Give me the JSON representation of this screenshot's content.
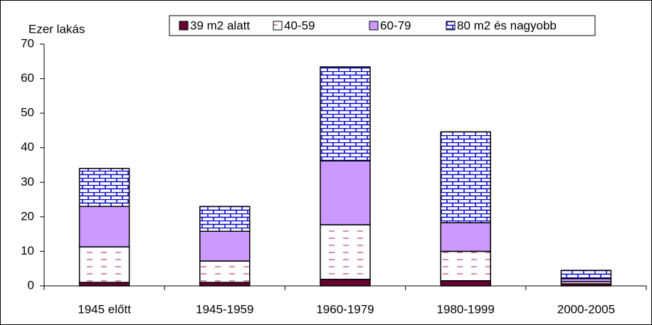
{
  "chart_data": {
    "type": "stacked_bar",
    "y_label": "Ezer lakás",
    "categories": [
      "1945 előtt",
      "1945-1959",
      "1960-1979",
      "1980-1999",
      "2000-2005"
    ],
    "series": [
      {
        "name": "39 m2 alatt",
        "color": "#660033",
        "pattern": "solid",
        "values": [
          1,
          1,
          1.9,
          1.5,
          0.6
        ]
      },
      {
        "name": "40-59",
        "color": "#cc6699",
        "pattern": "dashes",
        "values": [
          10.3,
          6.2,
          15.8,
          8.5,
          0.6
        ]
      },
      {
        "name": "60-79",
        "color": "#cc99ff",
        "pattern": "solid",
        "values": [
          11.7,
          8.6,
          18.5,
          8.3,
          0.9
        ]
      },
      {
        "name": "80 m2 és nagyobb",
        "color": "#0000cc",
        "pattern": "bricks",
        "values": [
          11,
          7.2,
          27.2,
          26.3,
          2.4
        ]
      }
    ],
    "ylim": [
      0,
      70
    ],
    "yticks": [
      0,
      10,
      20,
      30,
      40,
      50,
      60,
      70
    ],
    "legend": "top"
  }
}
